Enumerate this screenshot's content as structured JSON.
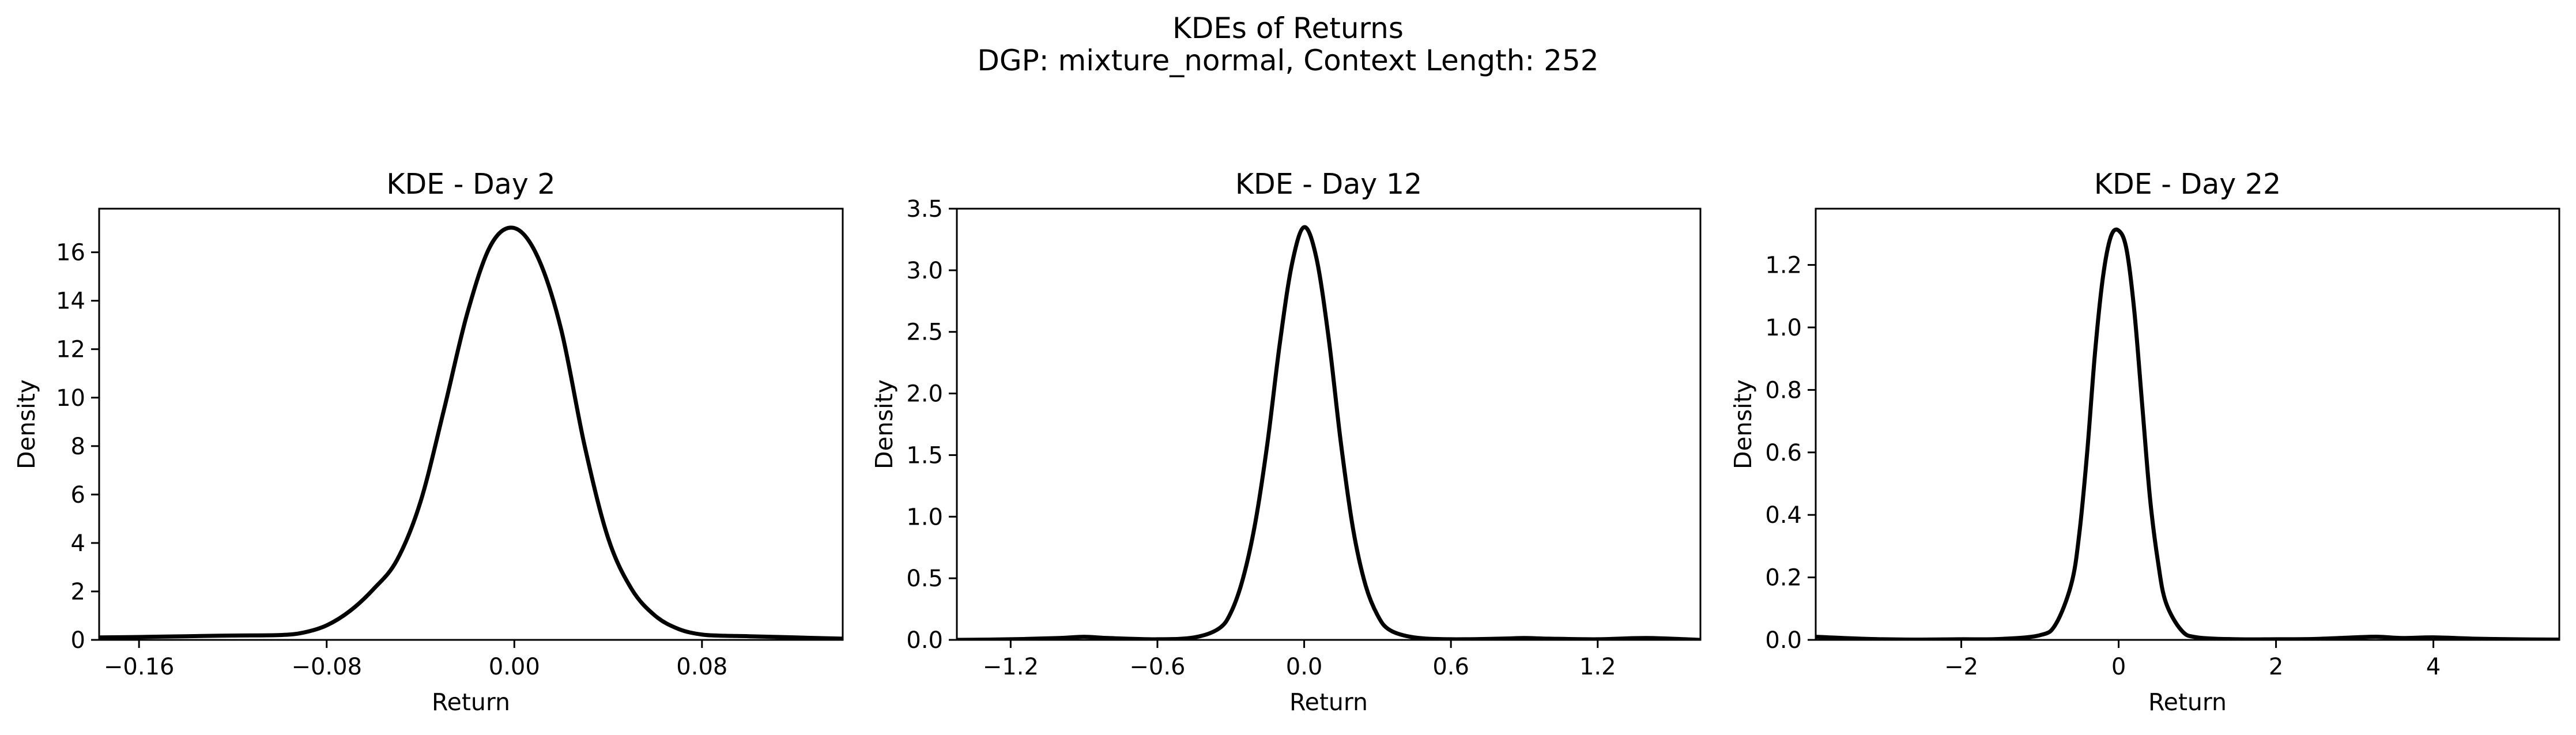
{
  "figure": {
    "suptitle_line1": "KDEs of Returns",
    "suptitle_line2": "DGP: mixture_normal, Context Length: 252"
  },
  "chart_data": [
    {
      "type": "line",
      "title": "KDE - Day 2",
      "xlabel": "Return",
      "ylabel": "Density",
      "xlim": [
        -0.177,
        0.14
      ],
      "ylim": [
        0,
        17.8
      ],
      "xticks": [
        -0.16,
        -0.08,
        0.0,
        0.08
      ],
      "xtick_labels": [
        "−0.16",
        "−0.08",
        "0.00",
        "0.08"
      ],
      "yticks": [
        0,
        2,
        4,
        6,
        8,
        10,
        12,
        14,
        16
      ],
      "ytick_labels": [
        "0",
        "2",
        "4",
        "6",
        "8",
        "10",
        "12",
        "14",
        "16"
      ],
      "grid": false,
      "color": "#000000",
      "series": [
        {
          "x": [
            -0.177,
            -0.16,
            -0.14,
            -0.12,
            -0.1,
            -0.09,
            -0.08,
            -0.07,
            -0.06,
            -0.05,
            -0.04,
            -0.03,
            -0.02,
            -0.01,
            0.0,
            0.01,
            0.02,
            0.03,
            0.04,
            0.05,
            0.06,
            0.07,
            0.08,
            0.09,
            0.1,
            0.12,
            0.14
          ],
          "y": [
            0.1,
            0.12,
            0.15,
            0.18,
            0.2,
            0.3,
            0.6,
            1.2,
            2.1,
            3.3,
            5.7,
            9.5,
            13.5,
            16.3,
            17.0,
            15.8,
            12.8,
            8.0,
            4.2,
            2.1,
            1.0,
            0.45,
            0.22,
            0.17,
            0.15,
            0.1,
            0.05
          ]
        }
      ]
    },
    {
      "type": "line",
      "title": "KDE - Day 12",
      "xlabel": "Return",
      "ylabel": "Density",
      "xlim": [
        -1.42,
        1.62
      ],
      "ylim": [
        0,
        3.5
      ],
      "xticks": [
        -1.2,
        -0.6,
        0.0,
        0.6,
        1.2
      ],
      "xtick_labels": [
        "−1.2",
        "−0.6",
        "0.0",
        "0.6",
        "1.2"
      ],
      "yticks": [
        0.0,
        0.5,
        1.0,
        1.5,
        2.0,
        2.5,
        3.0,
        3.5
      ],
      "ytick_labels": [
        "0.0",
        "0.5",
        "1.0",
        "1.5",
        "2.0",
        "2.5",
        "3.0",
        "3.5"
      ],
      "grid": false,
      "color": "#000000",
      "series": [
        {
          "x": [
            -1.42,
            -1.2,
            -1.0,
            -0.9,
            -0.8,
            -0.6,
            -0.45,
            -0.35,
            -0.3,
            -0.25,
            -0.2,
            -0.15,
            -0.1,
            -0.05,
            0.0,
            0.05,
            0.1,
            0.15,
            0.2,
            0.25,
            0.3,
            0.35,
            0.45,
            0.6,
            0.8,
            0.9,
            1.0,
            1.2,
            1.4,
            1.62
          ],
          "y": [
            0.0,
            0.005,
            0.015,
            0.025,
            0.015,
            0.005,
            0.02,
            0.09,
            0.22,
            0.5,
            0.95,
            1.6,
            2.4,
            3.05,
            3.35,
            3.1,
            2.45,
            1.6,
            0.9,
            0.45,
            0.2,
            0.08,
            0.02,
            0.005,
            0.01,
            0.015,
            0.01,
            0.005,
            0.015,
            0.0
          ]
        }
      ]
    },
    {
      "type": "line",
      "title": "KDE - Day 22",
      "xlabel": "Return",
      "ylabel": "Density",
      "xlim": [
        -3.85,
        5.6
      ],
      "ylim": [
        0,
        1.38
      ],
      "xticks": [
        -2,
        0,
        2,
        4
      ],
      "xtick_labels": [
        "−2",
        "0",
        "2",
        "4"
      ],
      "yticks": [
        0.0,
        0.2,
        0.4,
        0.6,
        0.8,
        1.0,
        1.2
      ],
      "ytick_labels": [
        "0.0",
        "0.2",
        "0.4",
        "0.6",
        "0.8",
        "1.0",
        "1.2"
      ],
      "grid": false,
      "color": "#000000",
      "series": [
        {
          "x": [
            -3.85,
            -3.5,
            -3.0,
            -2.5,
            -2.0,
            -1.5,
            -1.0,
            -0.8,
            -0.6,
            -0.5,
            -0.4,
            -0.3,
            -0.2,
            -0.1,
            0.0,
            0.1,
            0.2,
            0.3,
            0.4,
            0.5,
            0.6,
            0.8,
            1.0,
            1.5,
            2.0,
            2.5,
            3.0,
            3.3,
            3.6,
            4.0,
            4.5,
            5.0,
            5.6
          ],
          "y": [
            0.01,
            0.006,
            0.002,
            0.001,
            0.002,
            0.003,
            0.015,
            0.05,
            0.18,
            0.34,
            0.6,
            0.92,
            1.16,
            1.29,
            1.31,
            1.25,
            1.05,
            0.75,
            0.45,
            0.25,
            0.12,
            0.03,
            0.008,
            0.002,
            0.002,
            0.003,
            0.008,
            0.01,
            0.006,
            0.008,
            0.004,
            0.002,
            0.001
          ]
        }
      ]
    }
  ]
}
